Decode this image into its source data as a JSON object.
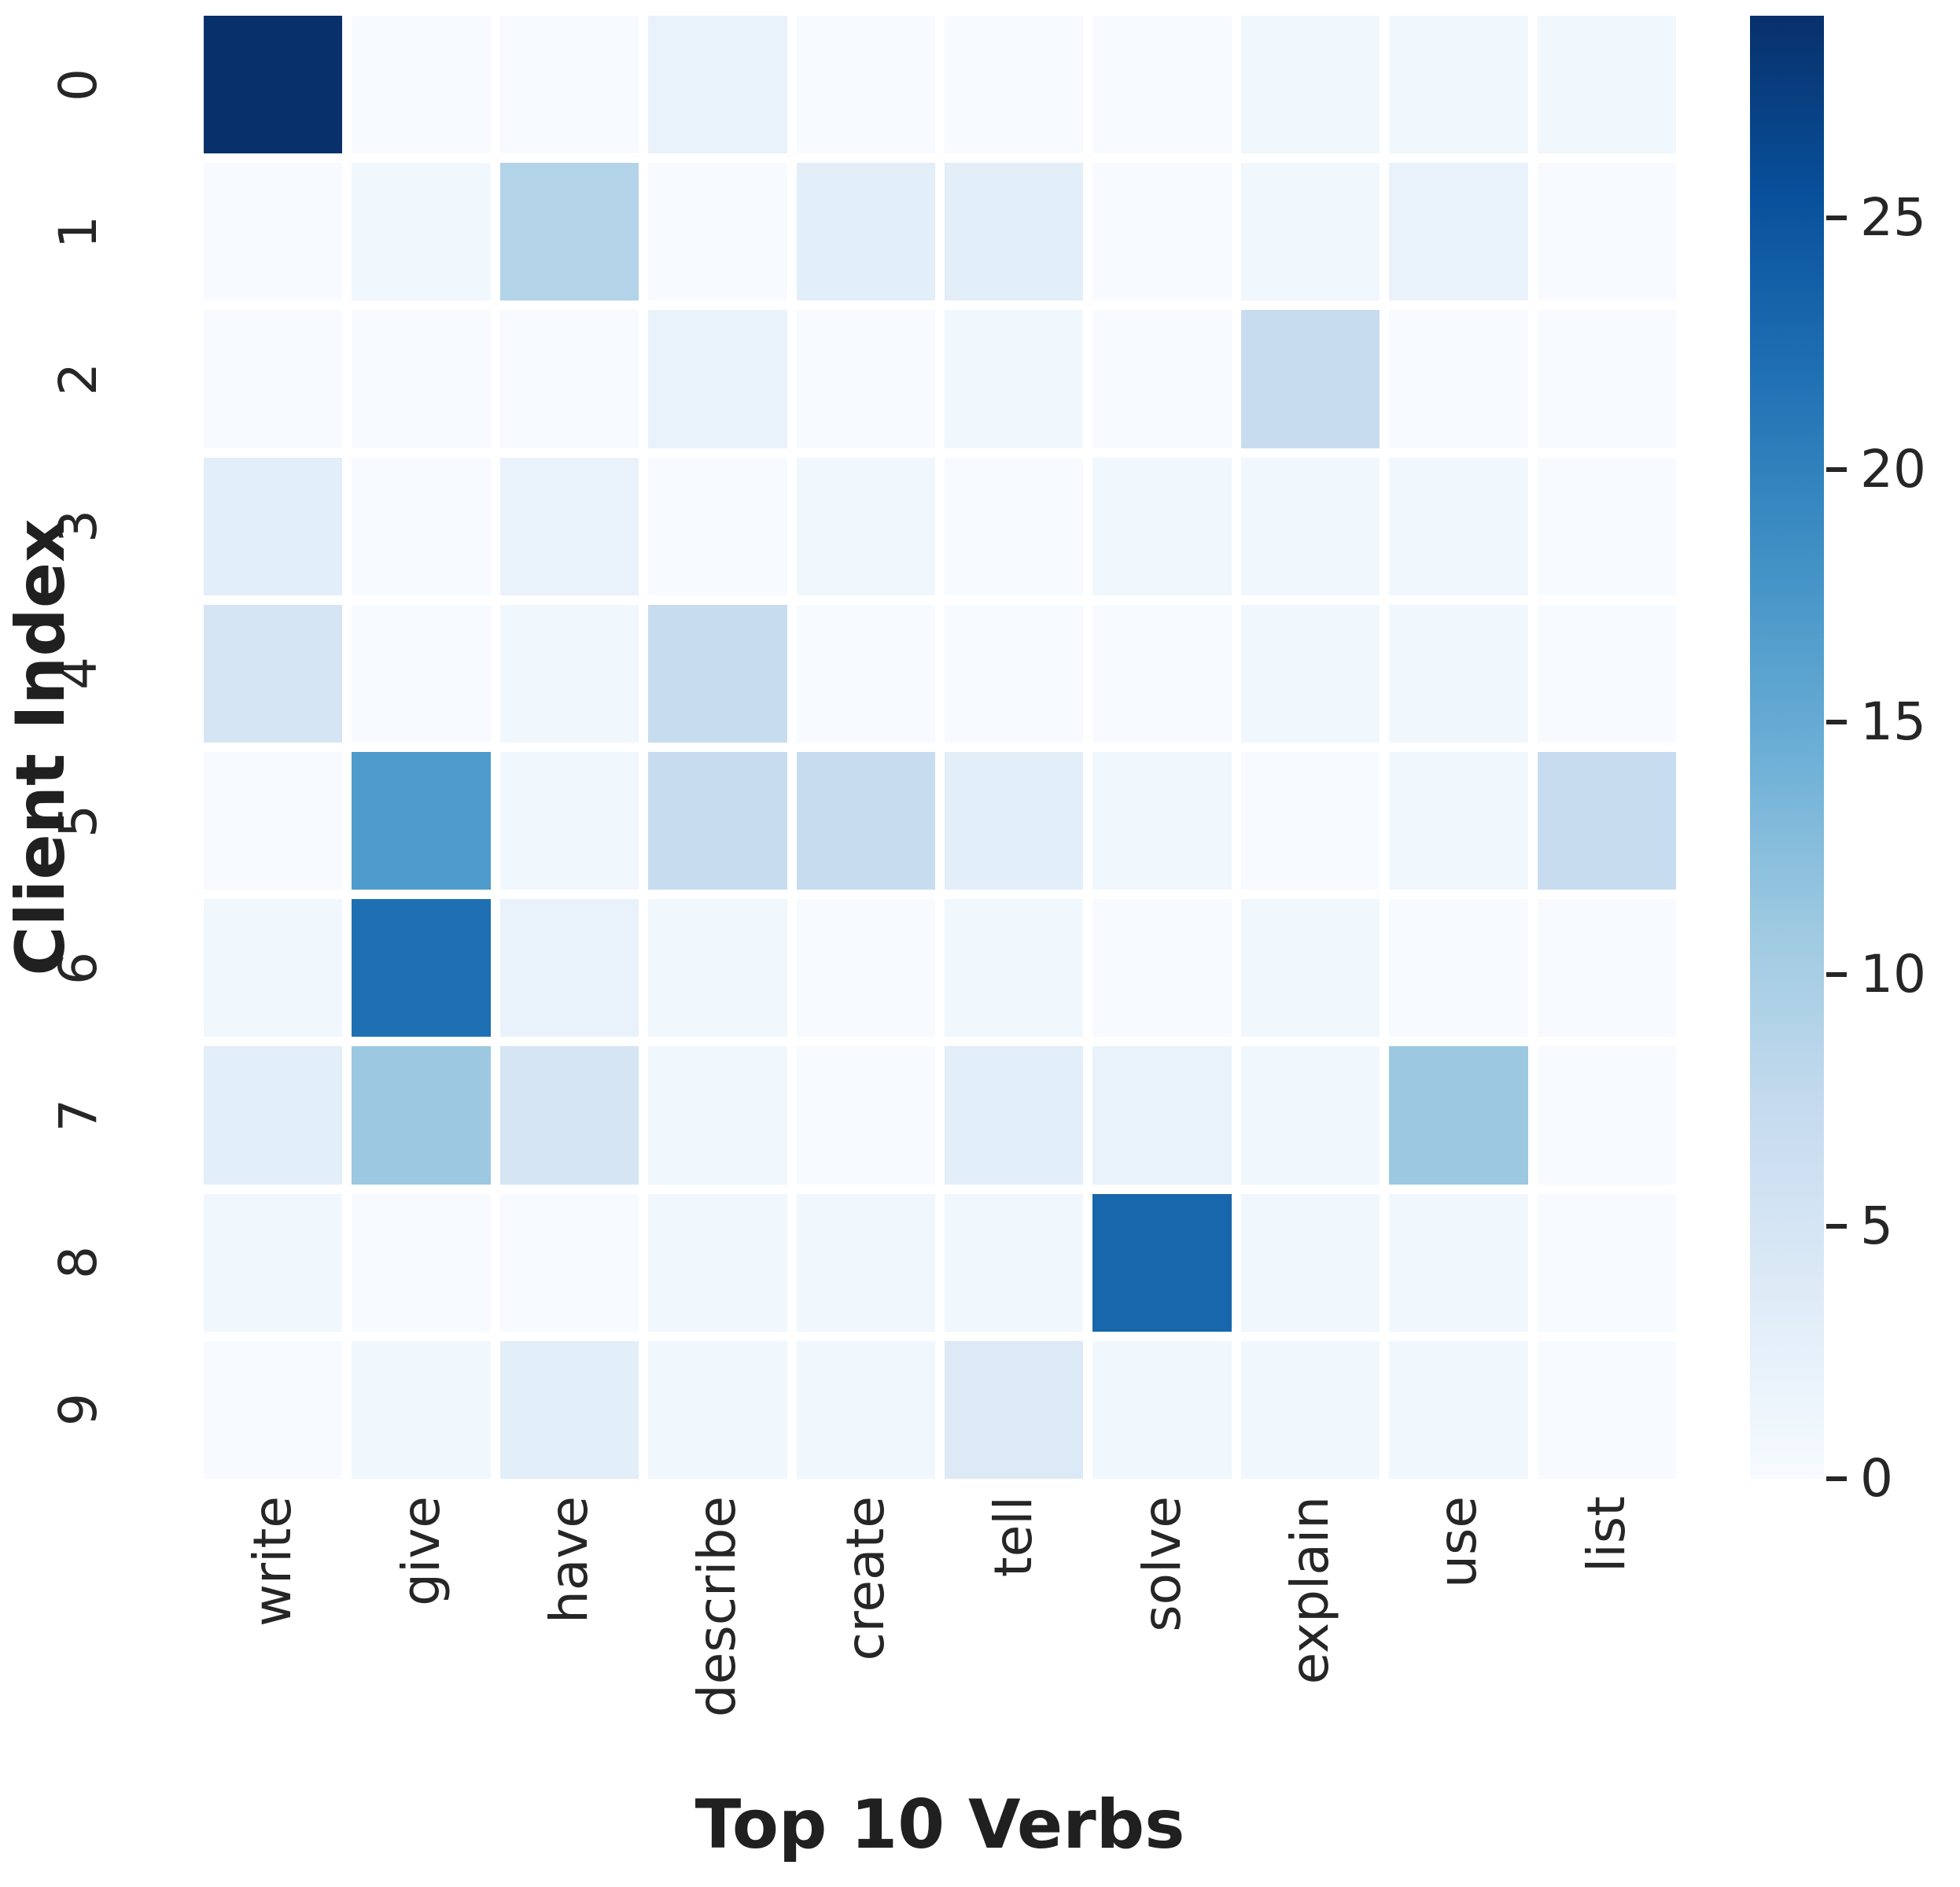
{
  "chart_data": {
    "type": "heatmap",
    "title": "",
    "xlabel": "Top 10 Verbs",
    "ylabel": "Client Index",
    "x_categories": [
      "write",
      "give",
      "have",
      "describe",
      "create",
      "tell",
      "solve",
      "explain",
      "use",
      "list"
    ],
    "y_categories": [
      "0",
      "1",
      "2",
      "3",
      "4",
      "5",
      "6",
      "7",
      "8",
      "9"
    ],
    "values": [
      [
        29,
        0,
        0,
        2,
        0,
        0,
        0,
        1,
        1,
        1
      ],
      [
        0,
        1,
        9,
        0,
        3,
        3,
        0,
        1,
        2,
        0
      ],
      [
        0,
        0,
        0,
        2,
        0,
        1,
        0,
        7,
        0,
        0
      ],
      [
        3,
        0,
        2,
        0,
        1,
        0,
        1,
        1,
        1,
        0
      ],
      [
        5,
        0,
        1,
        7,
        0,
        0,
        0,
        1,
        1,
        0
      ],
      [
        0,
        17,
        1,
        7,
        7,
        3,
        1,
        0,
        1,
        7
      ],
      [
        1,
        22,
        2,
        1,
        0,
        1,
        0,
        1,
        0,
        0
      ],
      [
        3,
        11,
        5,
        1,
        0,
        3,
        2,
        1,
        11,
        0
      ],
      [
        1,
        0,
        0,
        1,
        1,
        1,
        23,
        1,
        1,
        0
      ],
      [
        0,
        1,
        3,
        1,
        1,
        4,
        1,
        1,
        1,
        0
      ]
    ],
    "vmin": 0,
    "vmax": 29,
    "colormap": "Blues",
    "colormap_colors": [
      "#f7fbff",
      "#deebf7",
      "#c6dbef",
      "#9ecae1",
      "#6baed6",
      "#4292c6",
      "#2171b5",
      "#08519c",
      "#08306b"
    ],
    "colorbar_ticks": [
      25,
      20,
      15,
      10,
      5,
      0
    ],
    "colorbar_position": "right",
    "grid": false,
    "tick_color": "#262626",
    "label_color": "#202020"
  }
}
